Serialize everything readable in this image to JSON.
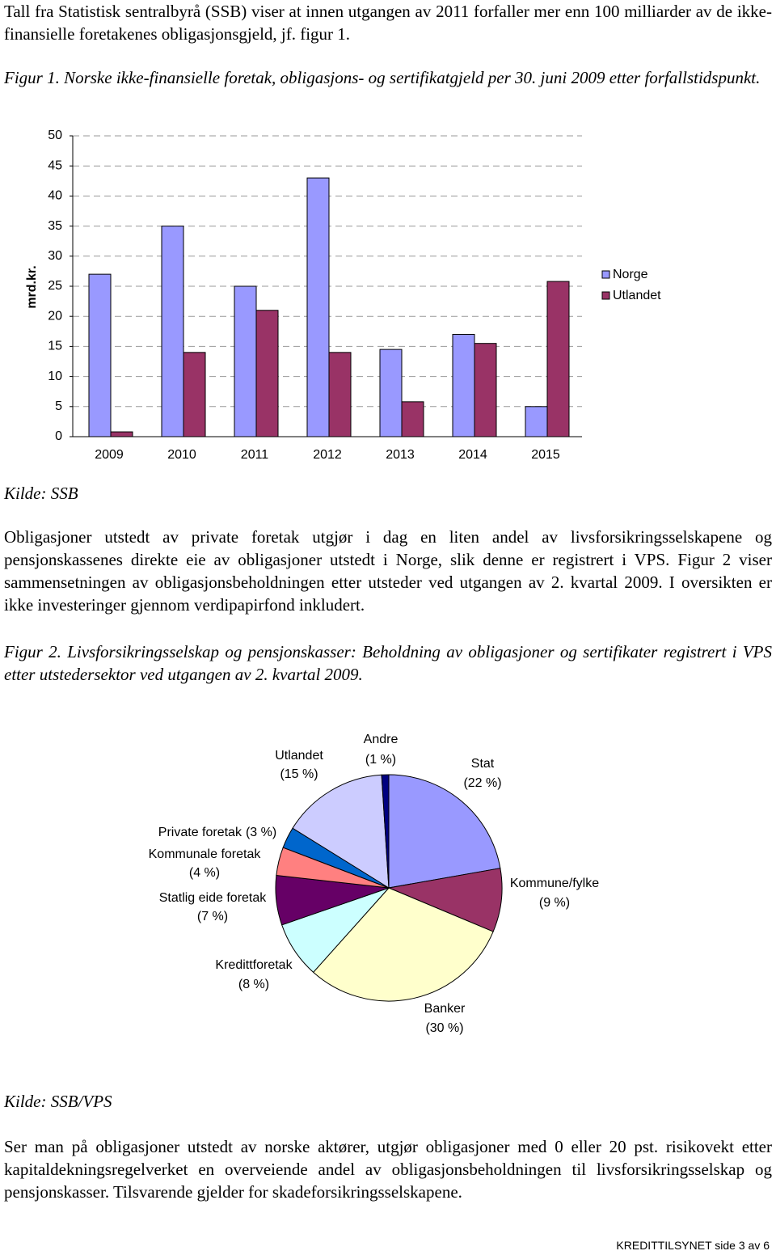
{
  "paragraphs": [
    "Tall fra Statistisk sentralbyrå (SSB) viser at innen utgangen av 2011 forfaller mer enn 100 milliarder av de ikke-finansielle foretakenes obligasjonsgjeld, jf. figur 1.",
    "Obligasjoner utstedt av private foretak utgjør i dag en liten andel av livsforsikringsselskapene og pensjonskassenes direkte eie av obligasjoner utstedt i Norge, slik denne er registrert i VPS. Figur 2 viser sammensetningen av obligasjonsbeholdningen etter utsteder ved utgangen av 2. kvartal 2009. I oversikten er ikke investeringer gjennom verdipapirfond inkludert.",
    "Ser man på obligasjoner utstedt av norske aktører, utgjør obligasjoner med 0 eller 20 pst. risikovekt etter kapitaldekningsregelverket en overveiende andel av obligasjonsbeholdningen til livsforsikringsselskap og pensjonskasser. Tilsvarende gjelder for skadeforsikringsselskapene."
  ],
  "figure_captions": [
    "Figur 1. Norske ikke-finansielle foretak, obligasjons- og sertifikatgjeld per 30. juni 2009 etter forfallstidspunkt.",
    "Figur 2. Livsforsikringsselskap og pensjonskasser: Beholdning av obligasjoner og sertifikater registrert i VPS etter utstedersektor ved utgangen av 2. kvartal 2009."
  ],
  "sources": [
    "Kilde: SSB",
    "Kilde: SSB/VPS"
  ],
  "footer": "KREDITTILSYNET side 3 av 6",
  "chart_data": [
    {
      "type": "bar",
      "y_label": "mrd.kr.",
      "categories": [
        "2009",
        "2010",
        "2011",
        "2012",
        "2013",
        "2014",
        "2015"
      ],
      "series": [
        {
          "name": "Norge",
          "color": "#9999ff",
          "values": [
            27,
            35,
            25,
            43,
            14.5,
            17,
            5
          ]
        },
        {
          "name": "Utlandet",
          "color": "#993366",
          "values": [
            0.8,
            14,
            21,
            14,
            5.8,
            15.5,
            25.8
          ]
        }
      ],
      "ylim": [
        0,
        50
      ],
      "yticks": [
        0,
        5,
        10,
        15,
        20,
        25,
        30,
        35,
        40,
        45,
        50
      ],
      "grid": true,
      "legend": "right"
    },
    {
      "type": "pie",
      "categories": [
        "Stat",
        "Kommune/fylke",
        "Banker",
        "Kredittforetak",
        "Statlig eide foretak",
        "Kommunale foretak",
        "Private foretak",
        "Utlandet",
        "Andre"
      ],
      "values": [
        22,
        9,
        30,
        8,
        7,
        4,
        3,
        15,
        1
      ],
      "value_labels": [
        "(22 %)",
        "(9 %)",
        "(30 %)",
        "(8 %)",
        "(7 %)",
        "(4 %)",
        "(3 %)",
        "(15 %)",
        "(1 %)"
      ],
      "colors": [
        "#9999ff",
        "#993366",
        "#ffffcc",
        "#ccffff",
        "#660066",
        "#ff8080",
        "#0066cc",
        "#ccccff",
        "#000080"
      ]
    }
  ]
}
